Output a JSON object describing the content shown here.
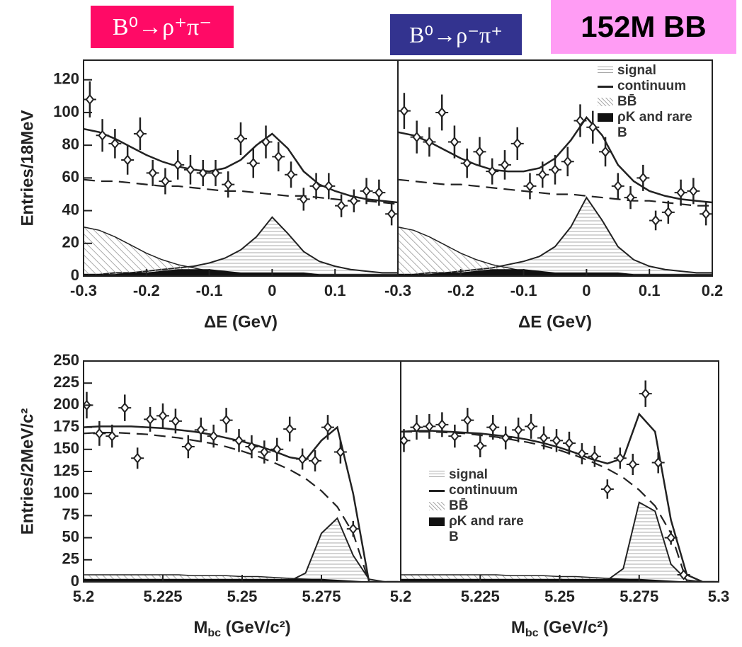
{
  "labels": {
    "left_channel": "B⁰→ρ⁺π⁻",
    "right_channel": "B⁰→ρ⁻π⁺",
    "sample": "152M BB"
  },
  "chart_data": [
    {
      "type": "scatter",
      "y_label": "Entries/18MeV",
      "x_label": "ΔE (GeV)",
      "xlim": [
        -0.3,
        0.2
      ],
      "ylim": [
        0,
        132
      ],
      "xticks": [
        -0.3,
        -0.2,
        -0.1,
        0,
        0.1
      ],
      "yticks": [
        0,
        20,
        40,
        60,
        80,
        100,
        120
      ],
      "points": {
        "x": [
          -0.29,
          -0.27,
          -0.25,
          -0.23,
          -0.21,
          -0.19,
          -0.17,
          -0.15,
          -0.13,
          -0.11,
          -0.09,
          -0.07,
          -0.05,
          -0.03,
          -0.01,
          0.01,
          0.03,
          0.05,
          0.07,
          0.09,
          0.11,
          0.13,
          0.15,
          0.17,
          0.19
        ],
        "values": [
          108,
          86,
          81,
          71,
          87,
          63,
          58,
          68,
          65,
          63,
          63,
          56,
          84,
          69,
          82,
          73,
          62,
          47,
          55,
          55,
          43,
          46,
          52,
          51,
          38
        ],
        "yerr": [
          11,
          10,
          9,
          9,
          10,
          8,
          8,
          9,
          9,
          8,
          8,
          8,
          10,
          9,
          10,
          9,
          8,
          7,
          8,
          8,
          7,
          7,
          8,
          8,
          7
        ]
      },
      "curve_x": [
        -0.3,
        -0.275,
        -0.25,
        -0.225,
        -0.2,
        -0.175,
        -0.15,
        -0.125,
        -0.1,
        -0.075,
        -0.05,
        -0.025,
        0,
        0.025,
        0.05,
        0.075,
        0.1,
        0.125,
        0.15,
        0.175,
        0.2
      ],
      "series": [
        {
          "style": "signal",
          "values": [
            1,
            1,
            2,
            2,
            3,
            4,
            5,
            6,
            8,
            11,
            16,
            24,
            36,
            26,
            15,
            9,
            6,
            4,
            3,
            2,
            2
          ]
        },
        {
          "style": "continuum",
          "values": [
            59,
            58,
            58,
            57,
            56,
            55,
            55,
            54,
            53,
            52,
            52,
            51,
            50,
            49,
            49,
            48,
            47,
            46,
            46,
            45,
            44
          ]
        },
        {
          "style": "bb",
          "values": [
            30,
            28,
            24,
            19,
            14,
            10,
            7,
            5,
            3,
            2,
            1,
            1,
            0,
            0,
            0,
            0,
            0,
            0,
            0,
            0,
            0
          ]
        },
        {
          "style": "rare",
          "values": [
            1,
            1,
            1,
            2,
            2,
            3,
            4,
            4,
            4,
            3,
            2,
            2,
            2,
            2,
            2,
            1,
            1,
            1,
            1,
            1,
            1
          ]
        },
        {
          "style": "total",
          "values": [
            90,
            88,
            84,
            79,
            74,
            70,
            67,
            65,
            64,
            66,
            71,
            80,
            87,
            78,
            64,
            56,
            52,
            49,
            47,
            46,
            45
          ]
        }
      ]
    },
    {
      "type": "scatter",
      "x_label": "ΔE (GeV)",
      "legend": "upper right",
      "xlim": [
        -0.3,
        0.2
      ],
      "ylim": [
        0,
        132
      ],
      "xticks": [
        -0.3,
        -0.2,
        -0.1,
        0,
        0.1,
        0.2
      ],
      "points": {
        "x": [
          -0.29,
          -0.27,
          -0.25,
          -0.23,
          -0.21,
          -0.19,
          -0.17,
          -0.15,
          -0.13,
          -0.11,
          -0.09,
          -0.07,
          -0.05,
          -0.03,
          -0.01,
          0.01,
          0.03,
          0.05,
          0.07,
          0.09,
          0.11,
          0.13,
          0.15,
          0.17,
          0.19
        ],
        "values": [
          101,
          85,
          82,
          100,
          82,
          69,
          76,
          64,
          68,
          81,
          55,
          62,
          65,
          70,
          95,
          91,
          76,
          55,
          48,
          60,
          34,
          39,
          51,
          52,
          38
        ],
        "yerr": [
          11,
          10,
          9,
          11,
          10,
          9,
          9,
          8,
          9,
          10,
          8,
          8,
          9,
          9,
          10,
          10,
          9,
          8,
          7,
          8,
          6,
          7,
          8,
          8,
          7
        ]
      },
      "curve_x": [
        -0.3,
        -0.275,
        -0.25,
        -0.225,
        -0.2,
        -0.175,
        -0.15,
        -0.125,
        -0.1,
        -0.075,
        -0.05,
        -0.025,
        0,
        0.025,
        0.05,
        0.075,
        0.1,
        0.125,
        0.15,
        0.175,
        0.2
      ],
      "series": [
        {
          "name": "signal",
          "style": "signal",
          "values": [
            1,
            1,
            2,
            2,
            3,
            4,
            5,
            7,
            9,
            12,
            18,
            30,
            48,
            34,
            18,
            10,
            6,
            4,
            3,
            2,
            2
          ]
        },
        {
          "name": "continuum",
          "style": "continuum",
          "values": [
            59,
            58,
            57,
            56,
            56,
            55,
            54,
            53,
            52,
            51,
            50,
            50,
            49,
            48,
            47,
            46,
            46,
            45,
            44,
            43,
            43
          ]
        },
        {
          "name": "BB̄",
          "style": "bb",
          "values": [
            30,
            28,
            24,
            19,
            14,
            10,
            7,
            5,
            3,
            2,
            1,
            1,
            0,
            0,
            0,
            0,
            0,
            0,
            0,
            0,
            0
          ]
        },
        {
          "name": "ρK and rare B",
          "style": "rare",
          "values": [
            1,
            1,
            1,
            2,
            2,
            3,
            4,
            4,
            4,
            3,
            2,
            2,
            2,
            2,
            2,
            1,
            1,
            1,
            1,
            1,
            1
          ]
        },
        {
          "style": "total",
          "values": [
            88,
            86,
            82,
            77,
            72,
            68,
            65,
            64,
            64,
            66,
            72,
            83,
            97,
            86,
            68,
            58,
            52,
            49,
            47,
            46,
            45
          ]
        }
      ]
    },
    {
      "type": "scatter",
      "y_label": "Entries/2MeV/c²",
      "x_label": {
        "main": "M",
        "sub": "bc",
        "rest": " (GeV/c²)"
      },
      "xlim": [
        5.2,
        5.3
      ],
      "ylim": [
        0,
        250
      ],
      "xticks": [
        5.2,
        5.225,
        5.25,
        5.275
      ],
      "yticks": [
        0,
        25,
        50,
        75,
        100,
        125,
        150,
        175,
        200,
        225,
        250
      ],
      "points": {
        "x": [
          5.201,
          5.205,
          5.209,
          5.213,
          5.217,
          5.221,
          5.225,
          5.229,
          5.233,
          5.237,
          5.241,
          5.245,
          5.249,
          5.253,
          5.257,
          5.261,
          5.265,
          5.269,
          5.273,
          5.277,
          5.281,
          5.285
        ],
        "values": [
          200,
          168,
          165,
          197,
          140,
          184,
          188,
          182,
          153,
          172,
          165,
          183,
          160,
          153,
          147,
          150,
          173,
          139,
          137,
          175,
          147,
          60
        ],
        "yerr": [
          15,
          14,
          13,
          15,
          12,
          14,
          14,
          14,
          13,
          14,
          13,
          14,
          13,
          13,
          13,
          13,
          14,
          12,
          12,
          14,
          13,
          9
        ]
      },
      "curve_x": [
        5.2,
        5.205,
        5.21,
        5.215,
        5.22,
        5.225,
        5.23,
        5.235,
        5.24,
        5.245,
        5.25,
        5.255,
        5.26,
        5.265,
        5.27,
        5.275,
        5.28,
        5.285,
        5.29,
        5.295,
        5.3
      ],
      "series": [
        {
          "style": "signal",
          "values": [
            0,
            0,
            0,
            0,
            0,
            0,
            0,
            0,
            0,
            0,
            0,
            0,
            0,
            1,
            10,
            55,
            72,
            30,
            3,
            0,
            0
          ]
        },
        {
          "style": "continuum",
          "values": [
            168,
            169,
            169,
            168,
            167,
            165,
            163,
            160,
            157,
            153,
            148,
            142,
            135,
            127,
            117,
            103,
            85,
            55,
            0,
            0,
            0
          ]
        },
        {
          "style": "bb",
          "values": [
            8,
            8,
            8,
            8,
            8,
            8,
            8,
            7,
            7,
            7,
            6,
            6,
            5,
            4,
            3,
            2,
            1,
            0,
            0,
            0,
            0
          ]
        },
        {
          "style": "rare",
          "values": [
            3,
            3,
            3,
            3,
            3,
            3,
            3,
            3,
            3,
            3,
            3,
            3,
            3,
            3,
            3,
            3,
            2,
            1,
            0,
            0,
            0
          ]
        },
        {
          "style": "total",
          "values": [
            175,
            176,
            176,
            176,
            175,
            174,
            172,
            170,
            167,
            163,
            159,
            154,
            148,
            141,
            138,
            160,
            175,
            100,
            0,
            0,
            0
          ]
        }
      ]
    },
    {
      "type": "scatter",
      "x_label": {
        "main": "M",
        "sub": "bc",
        "rest": " (GeV/c²)"
      },
      "legend": "lower left",
      "xlim": [
        5.2,
        5.3
      ],
      "ylim": [
        0,
        250
      ],
      "xticks": [
        5.2,
        5.225,
        5.25,
        5.275,
        5.3
      ],
      "points": {
        "x": [
          5.201,
          5.205,
          5.209,
          5.213,
          5.217,
          5.221,
          5.225,
          5.229,
          5.233,
          5.237,
          5.241,
          5.245,
          5.249,
          5.253,
          5.257,
          5.261,
          5.265,
          5.269,
          5.273,
          5.277,
          5.281,
          5.285,
          5.289
        ],
        "values": [
          160,
          175,
          176,
          178,
          165,
          183,
          154,
          175,
          163,
          172,
          176,
          163,
          160,
          157,
          145,
          142,
          105,
          140,
          133,
          213,
          135,
          50,
          8
        ],
        "yerr": [
          13,
          14,
          14,
          14,
          13,
          14,
          13,
          14,
          13,
          14,
          14,
          13,
          13,
          13,
          12,
          12,
          11,
          12,
          12,
          15,
          12,
          8,
          4
        ]
      },
      "curve_x": [
        5.2,
        5.205,
        5.21,
        5.215,
        5.22,
        5.225,
        5.23,
        5.235,
        5.24,
        5.245,
        5.25,
        5.255,
        5.26,
        5.265,
        5.27,
        5.275,
        5.28,
        5.285,
        5.29,
        5.295,
        5.3
      ],
      "series": [
        {
          "name": "signal",
          "style": "signal",
          "values": [
            0,
            0,
            0,
            0,
            0,
            0,
            0,
            0,
            0,
            0,
            0,
            0,
            0,
            2,
            15,
            90,
            80,
            20,
            2,
            0,
            0
          ]
        },
        {
          "name": "continuum",
          "style": "continuum",
          "values": [
            170,
            170,
            170,
            169,
            168,
            166,
            164,
            161,
            158,
            154,
            149,
            143,
            136,
            128,
            118,
            104,
            86,
            55,
            0,
            0,
            0
          ]
        },
        {
          "name": "BB̄",
          "style": "bb",
          "values": [
            8,
            8,
            8,
            8,
            8,
            8,
            8,
            7,
            7,
            7,
            6,
            6,
            5,
            4,
            3,
            2,
            1,
            0,
            0,
            0,
            0
          ]
        },
        {
          "name": "ρK and rare B",
          "style": "rare",
          "values": [
            3,
            3,
            3,
            3,
            3,
            3,
            3,
            3,
            3,
            3,
            3,
            3,
            3,
            3,
            3,
            3,
            2,
            1,
            0,
            0,
            0
          ]
        },
        {
          "style": "total",
          "values": [
            170,
            171,
            171,
            170,
            169,
            168,
            166,
            164,
            161,
            157,
            152,
            146,
            139,
            134,
            140,
            190,
            170,
            70,
            8,
            0,
            0
          ]
        }
      ]
    }
  ]
}
